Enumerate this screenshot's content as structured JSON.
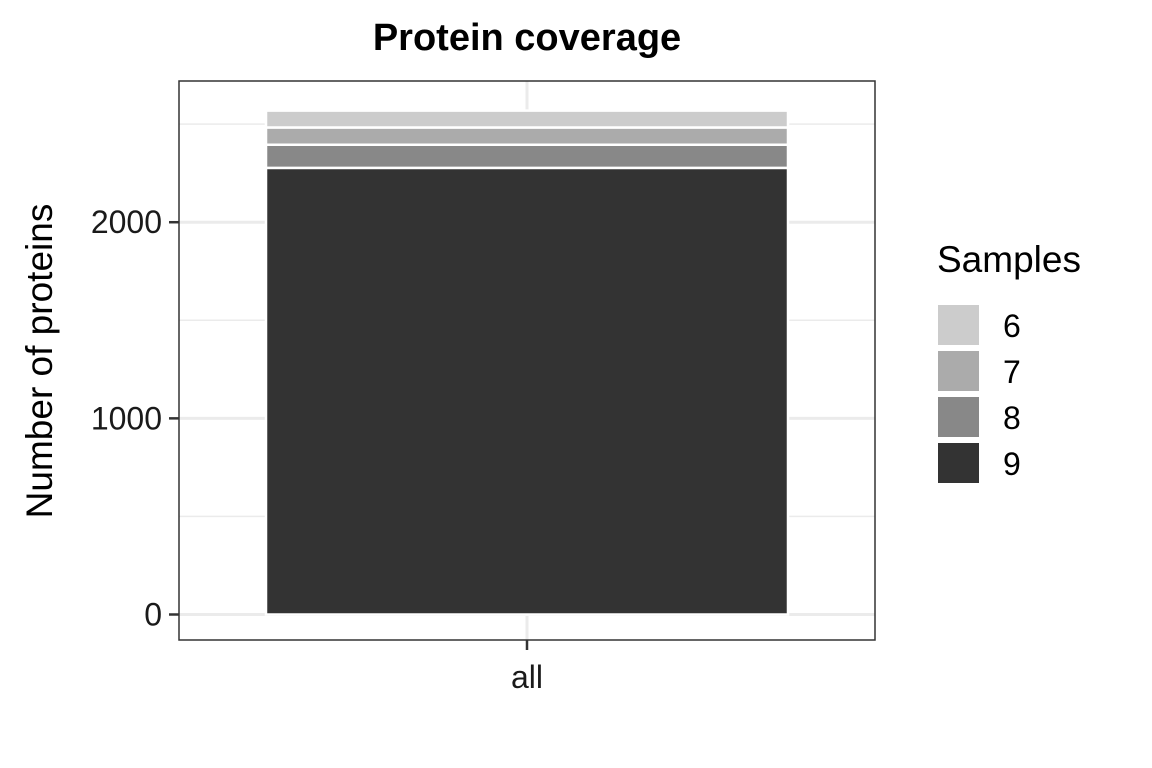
{
  "chart_data": {
    "type": "bar",
    "stacked": true,
    "title": "Protein coverage",
    "xlabel": "",
    "ylabel": "Number of proteins",
    "categories": [
      "all"
    ],
    "ylim": [
      -130,
      2720
    ],
    "y_ticks": [
      0,
      1000,
      2000
    ],
    "y_tick_labels": [
      "0",
      "1000",
      "2000"
    ],
    "grid": true,
    "legend": {
      "title": "Samples",
      "position": "right"
    },
    "series": [
      {
        "name": "9",
        "values": [
          2277
        ],
        "color": "#333333"
      },
      {
        "name": "8",
        "values": [
          118
        ],
        "color": "#888888"
      },
      {
        "name": "7",
        "values": [
          88
        ],
        "color": "#ababab"
      },
      {
        "name": "6",
        "values": [
          86
        ],
        "color": "#cccccc"
      }
    ]
  }
}
